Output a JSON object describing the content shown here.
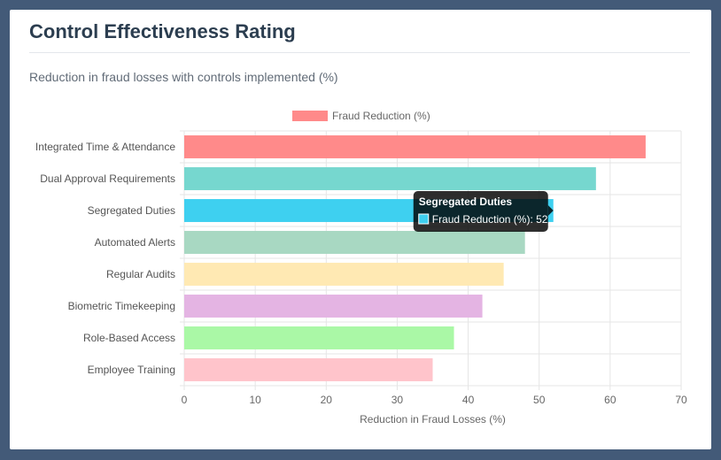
{
  "card": {
    "title": "Control Effectiveness Rating",
    "subtitle": "Reduction in fraud losses with controls implemented (%)"
  },
  "chart_data": {
    "type": "bar",
    "orientation": "horizontal",
    "categories": [
      "Integrated Time & Attendance",
      "Dual Approval Requirements",
      "Segregated Duties",
      "Automated Alerts",
      "Regular Audits",
      "Biometric Timekeeping",
      "Role-Based Access",
      "Employee Training"
    ],
    "series": [
      {
        "name": "Fraud Reduction (%)",
        "values": [
          65,
          58,
          52,
          48,
          45,
          42,
          38,
          35
        ]
      }
    ],
    "bar_colors": [
      "#ff8a8a",
      "#76d7cf",
      "#3ed0f0",
      "#a8d8c2",
      "#ffe9b3",
      "#e4b4e3",
      "#aaf8a6",
      "#ffc4cb"
    ],
    "legend_color": "#ff8a8a",
    "xlabel": "Reduction in Fraud Losses (%)",
    "ylabel": "",
    "xlim": [
      0,
      70
    ],
    "xticks": [
      0,
      10,
      20,
      30,
      40,
      50,
      60,
      70
    ],
    "grid": true,
    "legend_position": "top-center",
    "tooltip": {
      "title": "Segregated Duties",
      "label": "Fraud Reduction (%): 52",
      "swatch_color": "#3ed0f0"
    }
  }
}
